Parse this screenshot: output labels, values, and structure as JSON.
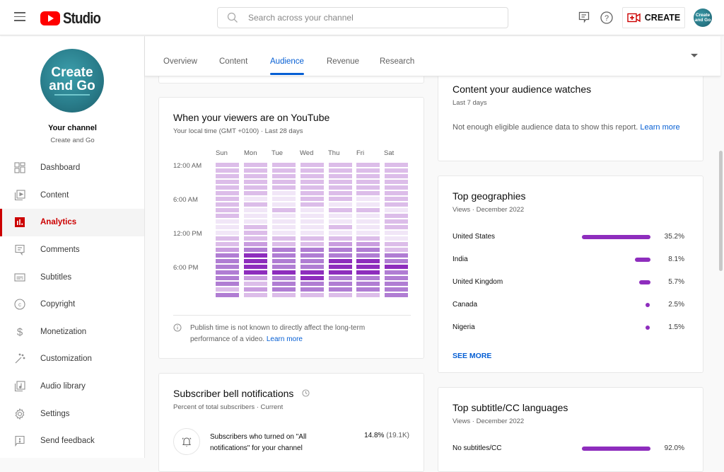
{
  "topbar": {
    "app_name": "Studio",
    "search_placeholder": "Search across your channel",
    "create_label": "CREATE",
    "avatar_text": "Create and Go"
  },
  "sidebar": {
    "channel_avatar_line1": "Create",
    "channel_avatar_line2": "and Go",
    "channel_title": "Your channel",
    "channel_name": "Create and Go",
    "items": [
      {
        "label": "Dashboard",
        "icon": "dashboard-icon"
      },
      {
        "label": "Content",
        "icon": "content-icon"
      },
      {
        "label": "Analytics",
        "icon": "analytics-icon",
        "active": true
      },
      {
        "label": "Comments",
        "icon": "comments-icon"
      },
      {
        "label": "Subtitles",
        "icon": "subtitles-icon"
      },
      {
        "label": "Copyright",
        "icon": "copyright-icon"
      },
      {
        "label": "Monetization",
        "icon": "dollar-icon"
      },
      {
        "label": "Customization",
        "icon": "magic-wand-icon"
      },
      {
        "label": "Audio library",
        "icon": "audio-library-icon"
      },
      {
        "label": "Settings",
        "icon": "gear-icon"
      },
      {
        "label": "Send feedback",
        "icon": "feedback-icon"
      }
    ]
  },
  "tabs": [
    {
      "label": "Overview"
    },
    {
      "label": "Content"
    },
    {
      "label": "Audience",
      "active": true
    },
    {
      "label": "Revenue"
    },
    {
      "label": "Research"
    }
  ],
  "viewers_card": {
    "title": "When your viewers are on YouTube",
    "subtitle": "Your local time (GMT +0100) · Last 28 days",
    "days": [
      "Sun",
      "Mon",
      "Tue",
      "Wed",
      "Thu",
      "Fri",
      "Sat"
    ],
    "time_labels": [
      "12:00 AM",
      "6:00 AM",
      "12:00 PM",
      "6:00 PM"
    ],
    "note": "Publish time is not known to directly affect the long-term performance of a video.",
    "note_link": "Learn more"
  },
  "bell_card": {
    "title": "Subscriber bell notifications",
    "subtitle": "Percent of total subscribers · Current",
    "row_label": "Subscribers who turned on \"All notifications\" for your channel",
    "row_value": "14.8%",
    "row_count": "(19.1K)"
  },
  "content_watch_card": {
    "title": "Content your audience watches",
    "subtitle": "Last 7 days",
    "message": "Not enough eligible audience data to show this report.",
    "link": "Learn more"
  },
  "geo_card": {
    "title": "Top geographies",
    "subtitle": "Views · December 2022",
    "see_more": "SEE MORE",
    "rows": [
      {
        "name": "United States",
        "pct": "35.2%",
        "value": 35.2
      },
      {
        "name": "India",
        "pct": "8.1%",
        "value": 8.1
      },
      {
        "name": "United Kingdom",
        "pct": "5.7%",
        "value": 5.7
      },
      {
        "name": "Canada",
        "pct": "2.5%",
        "value": 2.5
      },
      {
        "name": "Nigeria",
        "pct": "1.5%",
        "value": 1.5
      }
    ]
  },
  "subtitle_card": {
    "title": "Top subtitle/CC languages",
    "subtitle": "Views · December 2022",
    "rows": [
      {
        "name": "No subtitles/CC",
        "pct": "92.0%",
        "value": 92.0
      }
    ]
  },
  "chart_data": {
    "type": "heatmap",
    "title": "When your viewers are on YouTube",
    "x": [
      "Sun",
      "Mon",
      "Tue",
      "Wed",
      "Thu",
      "Fri",
      "Sat"
    ],
    "y_tick_labels": [
      "12:00 AM",
      "6:00 AM",
      "12:00 PM",
      "6:00 PM"
    ],
    "rows": 24,
    "scale": "0=lowest activity, 4=highest activity (relative intensity)",
    "values": {
      "Sun": [
        1,
        1,
        1,
        1,
        1,
        1,
        1,
        1,
        1,
        1,
        0,
        0,
        0,
        1,
        1,
        2,
        3,
        3,
        3,
        3,
        3,
        3,
        1,
        3
      ],
      "Mon": [
        1,
        1,
        1,
        1,
        1,
        1,
        0,
        1,
        0,
        0,
        0,
        1,
        1,
        1,
        2,
        3,
        4,
        4,
        4,
        4,
        2,
        1,
        2,
        1
      ],
      "Tue": [
        1,
        1,
        1,
        1,
        1,
        0,
        0,
        0,
        1,
        0,
        0,
        0,
        0,
        1,
        1,
        3,
        3,
        3,
        3,
        4,
        3,
        3,
        3,
        1
      ],
      "Wed": [
        1,
        1,
        1,
        1,
        1,
        1,
        1,
        1,
        0,
        0,
        0,
        0,
        0,
        1,
        1,
        3,
        3,
        3,
        3,
        4,
        4,
        3,
        3,
        1
      ],
      "Thu": [
        1,
        1,
        1,
        1,
        1,
        1,
        1,
        0,
        1,
        0,
        0,
        1,
        0,
        1,
        2,
        3,
        3,
        4,
        4,
        4,
        3,
        3,
        3,
        1
      ],
      "Fri": [
        1,
        1,
        1,
        1,
        1,
        1,
        0,
        0,
        1,
        0,
        0,
        0,
        0,
        1,
        2,
        3,
        3,
        4,
        4,
        4,
        3,
        3,
        3,
        1
      ],
      "Sat": [
        1,
        1,
        1,
        1,
        1,
        1,
        1,
        1,
        0,
        1,
        1,
        1,
        0,
        0,
        1,
        1,
        3,
        3,
        4,
        3,
        3,
        3,
        3,
        3
      ]
    },
    "color_scale": [
      "#f1e6f7",
      "#dcbde9",
      "#c99ddf",
      "#b07dd3",
      "#8e2dbd"
    ]
  }
}
